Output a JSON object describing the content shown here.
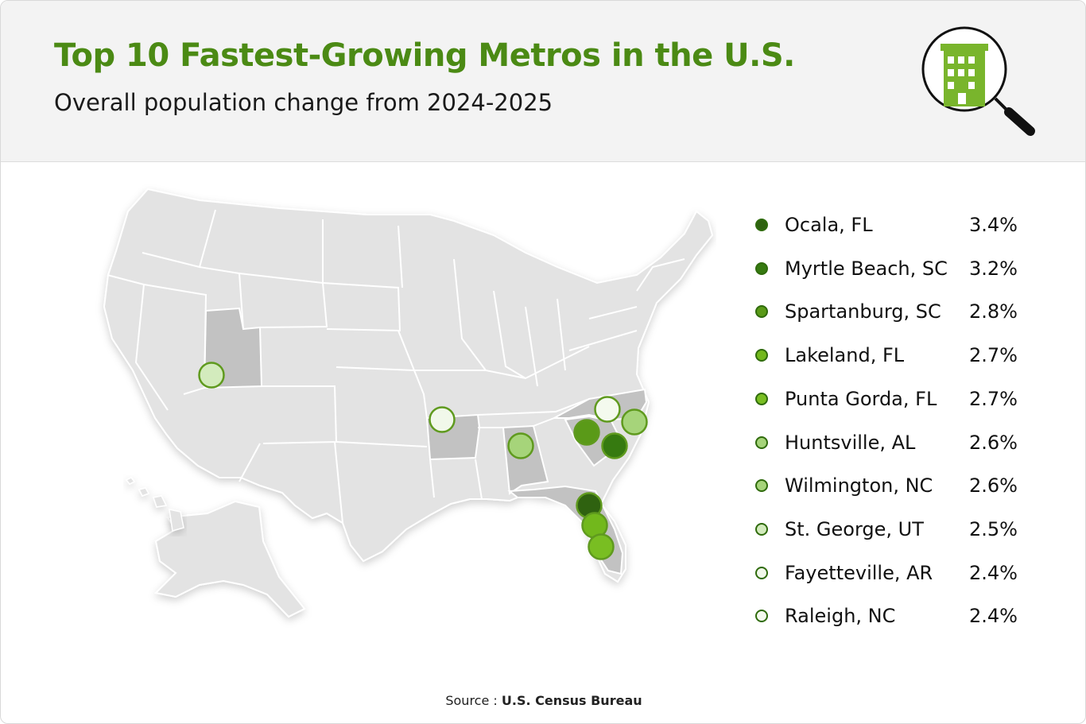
{
  "header": {
    "title": "Top 10 Fastest-Growing Metros in the U.S.",
    "subtitle": "Overall population change from 2024-2025",
    "icon": "building-magnifier-icon"
  },
  "colors": {
    "title_green": "#4b8a14",
    "state_fill": "#e3e3e3",
    "state_highlight": "#c2c2c2",
    "state_border": "#ffffff",
    "marker_border": "#5f9a1e"
  },
  "chart_data": {
    "type": "table",
    "rows": [
      {
        "metro": "Ocala, FL",
        "value": "3.4%",
        "color": "#2f6210"
      },
      {
        "metro": "Myrtle Beach, SC",
        "value": "3.2%",
        "color": "#367a10"
      },
      {
        "metro": "Spartanburg, SC",
        "value": "2.8%",
        "color": "#5a9a18"
      },
      {
        "metro": "Lakeland, FL",
        "value": "2.7%",
        "color": "#72b81c"
      },
      {
        "metro": "Punta Gorda, FL",
        "value": "2.7%",
        "color": "#79be22"
      },
      {
        "metro": "Huntsville, AL",
        "value": "2.6%",
        "color": "#a6d47a"
      },
      {
        "metro": "Wilmington, NC",
        "value": "2.6%",
        "color": "#a6d47a"
      },
      {
        "metro": "St. George, UT",
        "value": "2.5%",
        "color": "#d3ebbd"
      },
      {
        "metro": "Fayetteville, AR",
        "value": "2.4%",
        "color": "#f1f8ea"
      },
      {
        "metro": "Raleigh, NC",
        "value": "2.4%",
        "color": "#f4faee"
      }
    ]
  },
  "source": {
    "prefix": "Source : ",
    "name": "U.S. Census Bureau"
  }
}
